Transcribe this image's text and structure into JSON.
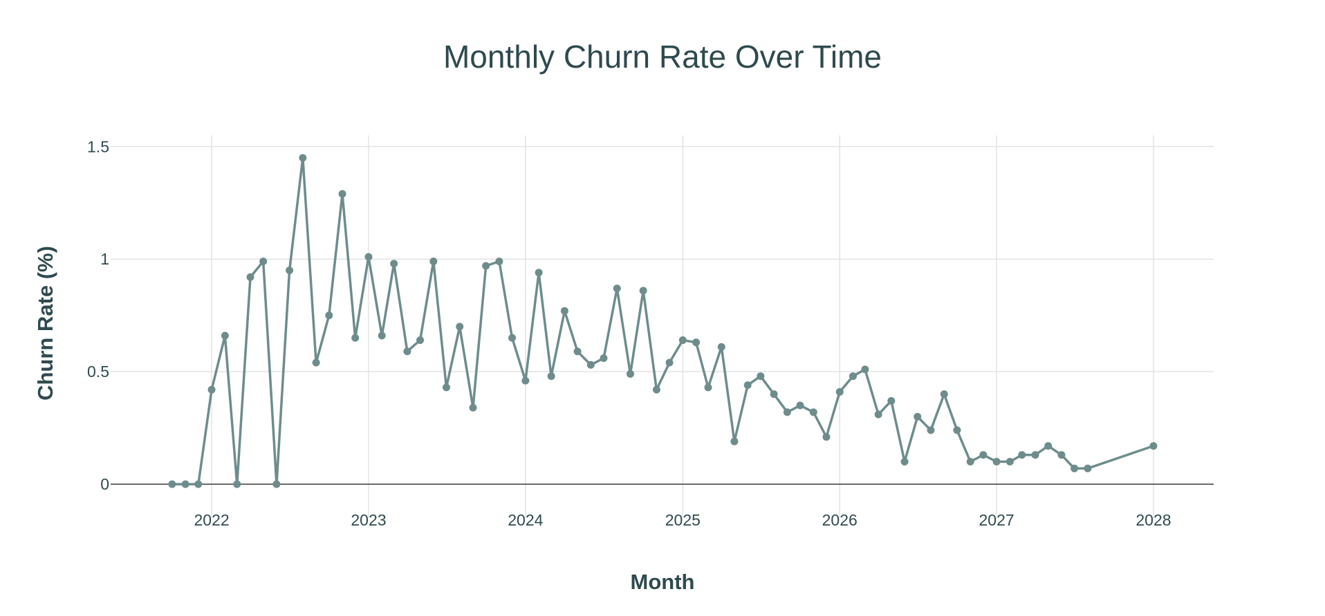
{
  "chart_data": {
    "type": "line",
    "title": "Monthly Churn Rate Over Time",
    "xlabel": "Month",
    "ylabel": "Churn Rate (%)",
    "x_ticks": [
      "2022",
      "2023",
      "2024",
      "2025",
      "2026",
      "2027",
      "2028"
    ],
    "y_ticks": [
      "0",
      "0.5",
      "1",
      "1.5"
    ],
    "y_tick_values": [
      0,
      0.5,
      1,
      1.5
    ],
    "xlim": [
      "2021-05-11",
      "2028-05-20"
    ],
    "ylim": [
      -0.15,
      1.55
    ],
    "grid": true,
    "legend": "none",
    "color": "#6e8c8c",
    "series": [
      {
        "x": [
          "2021-10-01",
          "2021-11-01",
          "2021-12-01",
          "2022-01-01",
          "2022-02-01",
          "2022-03-01",
          "2022-04-01",
          "2022-05-01",
          "2022-06-01",
          "2022-07-01",
          "2022-08-01",
          "2022-09-01",
          "2022-10-01",
          "2022-11-01",
          "2022-12-01",
          "2023-01-01",
          "2023-02-01",
          "2023-03-01",
          "2023-04-01",
          "2023-05-01",
          "2023-06-01",
          "2023-07-01",
          "2023-08-01",
          "2023-09-01",
          "2023-10-01",
          "2023-11-01",
          "2023-12-01",
          "2024-01-01",
          "2024-02-01",
          "2024-03-01",
          "2024-04-01",
          "2024-05-01",
          "2024-06-01",
          "2024-07-01",
          "2024-08-01",
          "2024-09-01",
          "2024-10-01",
          "2024-11-01",
          "2024-12-01",
          "2025-01-01",
          "2025-02-01",
          "2025-03-01",
          "2025-04-01",
          "2025-05-01",
          "2025-06-01",
          "2025-07-01",
          "2025-08-01",
          "2025-09-01",
          "2025-10-01",
          "2025-11-01",
          "2025-12-01",
          "2026-01-01",
          "2026-02-01",
          "2026-03-01",
          "2026-04-01",
          "2026-05-01",
          "2026-06-01",
          "2026-07-01",
          "2026-08-01",
          "2026-09-01",
          "2026-10-01",
          "2026-11-01",
          "2026-12-01",
          "2027-01-01",
          "2027-02-01",
          "2027-03-01",
          "2027-04-01",
          "2027-05-01",
          "2027-06-01",
          "2027-07-01",
          "2027-08-01",
          "2028-01-01"
        ],
        "y": [
          0,
          0,
          0,
          0.42,
          0.66,
          0,
          0.92,
          0.99,
          0,
          0.95,
          1.45,
          0.54,
          0.75,
          1.29,
          0.65,
          1.01,
          0.66,
          0.98,
          0.59,
          0.64,
          0.99,
          0.43,
          0.7,
          0.34,
          0.97,
          0.99,
          0.65,
          0.46,
          0.94,
          0.48,
          0.77,
          0.59,
          0.53,
          0.56,
          0.87,
          0.49,
          0.86,
          0.42,
          0.54,
          0.64,
          0.63,
          0.43,
          0.61,
          0.19,
          0.44,
          0.48,
          0.4,
          0.32,
          0.35,
          0.32,
          0.21,
          0.41,
          0.48,
          0.51,
          0.31,
          0.37,
          0.1,
          0.3,
          0.24,
          0.4,
          0.24,
          0.1,
          0.13,
          0.1,
          0.1,
          0.13,
          0.13,
          0.17,
          0.13,
          0.07,
          0.07,
          0.17
        ]
      }
    ]
  }
}
